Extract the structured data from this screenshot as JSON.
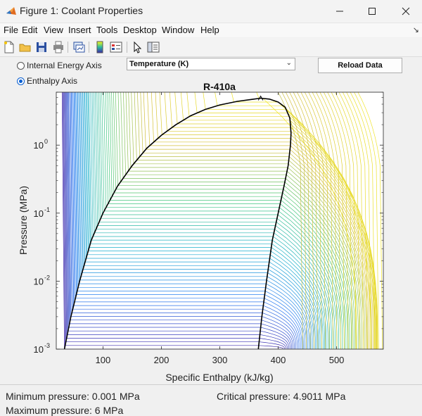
{
  "window": {
    "title": "Figure 1: Coolant Properties",
    "minimize_icon": "minimize-icon",
    "maximize_icon": "maximize-icon",
    "close_icon": "close-icon"
  },
  "menubar": {
    "items": [
      "File",
      "Edit",
      "View",
      "Insert",
      "Tools",
      "Desktop",
      "Window",
      "Help"
    ]
  },
  "toolbar": {
    "icons": [
      "new-figure-icon",
      "open-file-icon",
      "save-icon",
      "print-icon",
      "link-plot-icon",
      "colorbar-icon",
      "legend-icon",
      "pointer-icon",
      "property-editor-icon"
    ]
  },
  "controls": {
    "radio_internal_energy": "Internal Energy Axis",
    "radio_enthalpy": "Enthalpy Axis",
    "selected_radio": "Enthalpy Axis",
    "dropdown_value": "Temperature (K)",
    "reload_button": "Reload Data"
  },
  "chart_data": {
    "type": "line",
    "title": "R-410a",
    "xlabel": "Specific Enthalpy (kJ/kg)",
    "ylabel": "Pressure (MPa)",
    "xlim": [
      20,
      580
    ],
    "ylim": [
      0.001,
      6
    ],
    "yscale": "log",
    "xticks": [
      100,
      200,
      300,
      400,
      500
    ],
    "yticks": [
      {
        "value": 0.001,
        "base": "10",
        "exp": "-3"
      },
      {
        "value": 0.01,
        "base": "10",
        "exp": "-2"
      },
      {
        "value": 0.1,
        "base": "10",
        "exp": "-1"
      },
      {
        "value": 1,
        "base": "10",
        "exp": "0"
      }
    ],
    "saturation_dome": {
      "liquid": [
        [
          34,
          0.001
        ],
        [
          45,
          0.003
        ],
        [
          60,
          0.01
        ],
        [
          80,
          0.04
        ],
        [
          100,
          0.1
        ],
        [
          125,
          0.25
        ],
        [
          150,
          0.5
        ],
        [
          175,
          0.9
        ],
        [
          200,
          1.4
        ],
        [
          225,
          2.0
        ],
        [
          250,
          2.7
        ],
        [
          275,
          3.35
        ],
        [
          300,
          3.9
        ],
        [
          330,
          4.4
        ],
        [
          355,
          4.7
        ],
        [
          370,
          4.9
        ]
      ],
      "vapor": [
        [
          366,
          0.001
        ],
        [
          372,
          0.003
        ],
        [
          380,
          0.01
        ],
        [
          390,
          0.04
        ],
        [
          400,
          0.1
        ],
        [
          410,
          0.25
        ],
        [
          417,
          0.5
        ],
        [
          421,
          1.0
        ],
        [
          422,
          1.5
        ],
        [
          420,
          2.5
        ],
        [
          412,
          3.6
        ],
        [
          400,
          4.3
        ],
        [
          385,
          4.75
        ],
        [
          370,
          4.9
        ]
      ]
    },
    "isotherm_colormap": "parula",
    "isotherm_count": 70,
    "grid": false
  },
  "status": {
    "min_pressure": "Minimum pressure: 0.001 MPa",
    "max_pressure": "Maximum pressure: 6 MPa",
    "critical_pressure": "Critical pressure: 4.9011 MPa"
  }
}
